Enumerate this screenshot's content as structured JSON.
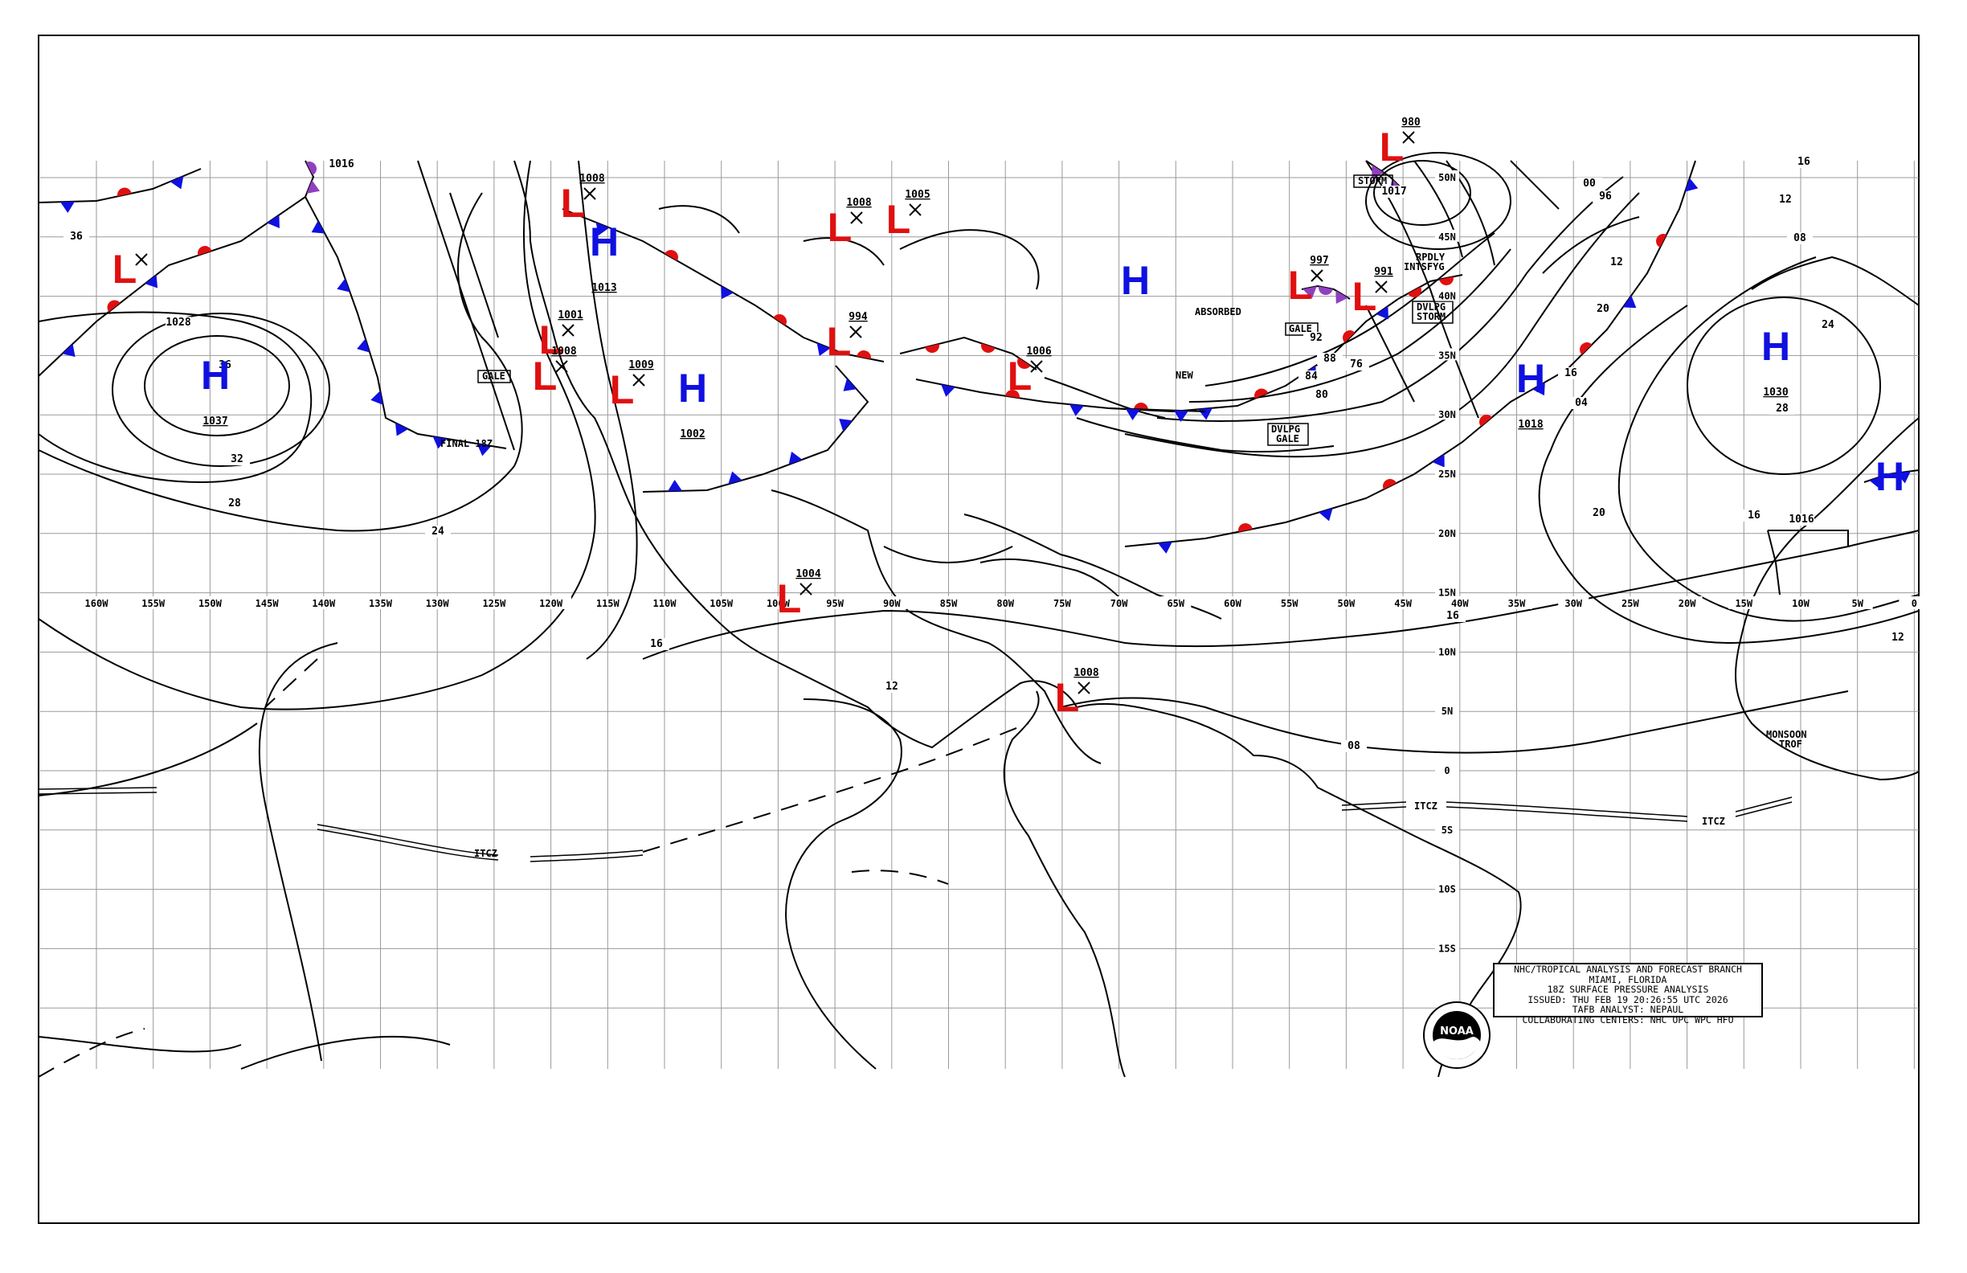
{
  "chart": {
    "info_box": {
      "line1": "NHC/TROPICAL ANALYSIS AND FORECAST BRANCH",
      "line2": "MIAMI, FLORIDA",
      "line3": "18Z SURFACE PRESSURE ANALYSIS",
      "line4": "ISSUED: THU FEB 19 20:26:55 UTC 2026",
      "line5": "TAFB ANALYST: NEPAUL",
      "line6": "COLLABORATING CENTERS: NHC OPC WPC HFO"
    },
    "logo_text": "NOAA",
    "longitude_labels": [
      "160W",
      "155W",
      "150W",
      "145W",
      "140W",
      "135W",
      "130W",
      "125W",
      "120W",
      "115W",
      "110W",
      "105W",
      "100W",
      "95W",
      "90W",
      "85W",
      "80W",
      "75W",
      "70W",
      "65W",
      "60W",
      "55W",
      "50W",
      "45W",
      "40W",
      "35W",
      "30W",
      "25W",
      "20W",
      "15W",
      "10W",
      "5W",
      "0"
    ],
    "latitude_labels": [
      "50N",
      "45N",
      "40N",
      "35N",
      "30N",
      "25N",
      "20N",
      "15N",
      "10N",
      "5N",
      "0",
      "5S",
      "10S",
      "15S"
    ],
    "highs": [
      {
        "symbol": "H",
        "value": "1037"
      },
      {
        "symbol": "H",
        "value": "1013"
      },
      {
        "symbol": "H",
        "value": "1002"
      },
      {
        "symbol": "H",
        "value": ""
      },
      {
        "symbol": "H",
        "value": "1018"
      },
      {
        "symbol": "H",
        "value": "1030"
      },
      {
        "symbol": "H",
        "value": ""
      }
    ],
    "lows": [
      {
        "symbol": "L",
        "value": ""
      },
      {
        "symbol": "L",
        "value": "1008"
      },
      {
        "symbol": "L",
        "value": "1001"
      },
      {
        "symbol": "L",
        "value": "1008"
      },
      {
        "symbol": "L",
        "value": "1009"
      },
      {
        "symbol": "L",
        "value": "1008"
      },
      {
        "symbol": "L",
        "value": "994"
      },
      {
        "symbol": "L",
        "value": "1005"
      },
      {
        "symbol": "L",
        "value": "1006"
      },
      {
        "symbol": "L",
        "value": "1004"
      },
      {
        "symbol": "L",
        "value": "1008"
      },
      {
        "symbol": "L",
        "value": "997"
      },
      {
        "symbol": "L",
        "value": "991"
      },
      {
        "symbol": "L",
        "value": "980"
      }
    ],
    "isobar_labels": [
      "1016",
      "36",
      "1028",
      "36",
      "32",
      "28",
      "24",
      "20",
      "16",
      "12",
      "08",
      "04",
      "00",
      "96",
      "92",
      "88",
      "84",
      "80",
      "76",
      "1017",
      "1016",
      "16",
      "20",
      "24",
      "28",
      "20",
      "16",
      "12",
      "16",
      "12",
      "08",
      "12",
      "16"
    ],
    "annotations": {
      "final": "FINAL 18Z",
      "gale_west": "GALE",
      "absorbed": "ABSORBED",
      "new": "NEW",
      "gale_atl": "GALE",
      "rpdly": "RPDLY",
      "intsfyg": "INTSFYG",
      "dvlpg_storm_1": "DVLPG",
      "dvlpg_storm_2": "STORM",
      "storm": "STORM",
      "dvlpg_gale_1": "DVLPG",
      "dvlpg_gale_2": "GALE",
      "itcz_pac": "ITCZ",
      "itcz_atl_1": "ITCZ",
      "itcz_atl_2": "ITCZ",
      "monsoon_1": "MONSOON",
      "monsoon_2": "TROF"
    },
    "colors": {
      "high": "#1010e0",
      "low": "#e01010",
      "cold_front": "#1010e0",
      "warm_front": "#e01010",
      "occluded": "#9040c0",
      "lines": "#000000",
      "grid": "#9a9a9a"
    }
  }
}
